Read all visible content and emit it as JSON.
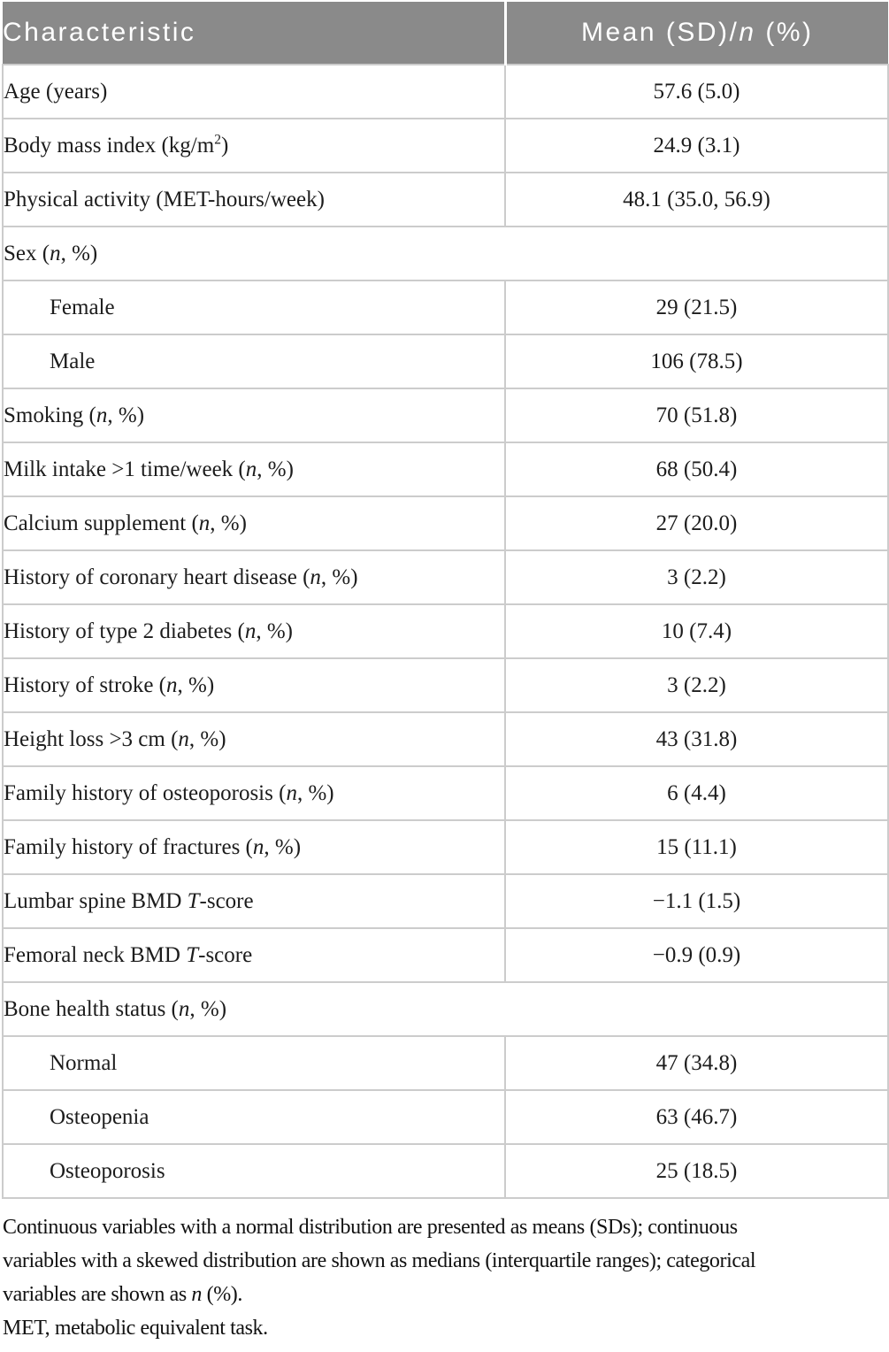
{
  "colors": {
    "header_bg": "#8a8a8a",
    "header_text": "#ffffff",
    "row_border": "#cccccc",
    "body_text": "#1c1c1c"
  },
  "table": {
    "header": {
      "col1": "Characteristic",
      "col2_html": "Mean (SD)/<i>n</i> (%)"
    },
    "rows": [
      {
        "label_html": "Age (years)",
        "value": "57.6 (5.0)"
      },
      {
        "label_html": "Body mass index (kg/m<sup>2</sup>)",
        "value": "24.9 (3.1)"
      },
      {
        "label_html": "Physical activity (MET-hours/week)",
        "value": "48.1 (35.0, 56.9)"
      },
      {
        "label_html": "Sex (<i>n</i>, %)",
        "span": true
      },
      {
        "label_html": "Female",
        "value": "29 (21.5)",
        "indent": true
      },
      {
        "label_html": "Male",
        "value": "106 (78.5)",
        "indent": true
      },
      {
        "label_html": "Smoking (<i>n</i>, %)",
        "value": "70 (51.8)"
      },
      {
        "label_html": "Milk intake >1 time/week (<i>n</i>, %)",
        "value": "68 (50.4)"
      },
      {
        "label_html": "Calcium supplement (<i>n</i>, %)",
        "value": "27 (20.0)"
      },
      {
        "label_html": "History of coronary heart disease (<i>n</i>, %)",
        "value": "3 (2.2)"
      },
      {
        "label_html": "History of type 2 diabetes (<i>n</i>, %)",
        "value": "10 (7.4)"
      },
      {
        "label_html": "History of stroke (<i>n</i>, %)",
        "value": "3 (2.2)"
      },
      {
        "label_html": "Height loss >3 cm (<i>n</i>, %)",
        "value": "43 (31.8)"
      },
      {
        "label_html": "Family history of osteoporosis (<i>n</i>, %)",
        "value": "6 (4.4)"
      },
      {
        "label_html": "Family history of fractures (<i>n</i>, %)",
        "value": "15 (11.1)"
      },
      {
        "label_html": "Lumbar spine BMD <i>T</i>-score",
        "value": "−1.1 (1.5)"
      },
      {
        "label_html": "Femoral neck BMD <i>T</i>-score",
        "value": "−0.9 (0.9)"
      },
      {
        "label_html": "Bone health status (<i>n</i>, %)",
        "span": true
      },
      {
        "label_html": "Normal",
        "value": "47 (34.8)",
        "indent": true
      },
      {
        "label_html": "Osteopenia",
        "value": "63 (46.7)",
        "indent": true
      },
      {
        "label_html": "Osteoporosis",
        "value": "25 (18.5)",
        "indent": true
      }
    ],
    "footnote_lines": [
      "Continuous variables with a normal distribution are presented as means (SDs); continuous",
      "variables with a skewed distribution are shown as medians (interquartile ranges); categorical",
      "variables are shown as <i>n</i> (%).",
      "MET, metabolic equivalent task."
    ]
  }
}
